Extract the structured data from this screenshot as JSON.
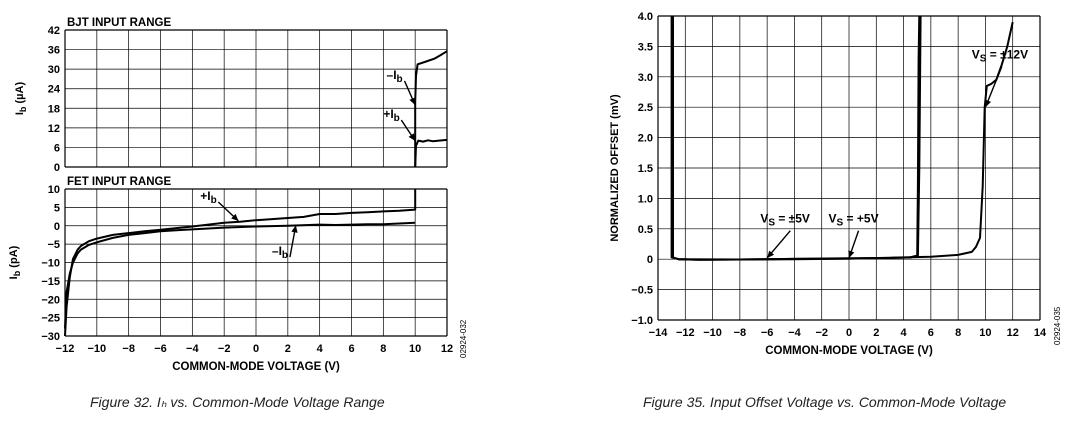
{
  "captions": {
    "fig32": "Figure 32. Iₕ vs. Common-Mode Voltage Range",
    "fig35": "Figure 35. Input Offset Voltage vs. Common-Mode Voltage"
  },
  "colors": {
    "line": "#000000",
    "grid": "#000000",
    "caption": "#222222"
  },
  "chart_data": [
    {
      "type": "line",
      "title": "BJT INPUT RANGE",
      "ylabel": "Ib (µA)",
      "xlim": [
        -12,
        12
      ],
      "ylim": [
        0,
        42
      ],
      "x_ticks": [
        -12,
        -10,
        -8,
        -6,
        -4,
        -2,
        0,
        2,
        4,
        6,
        8,
        10,
        12
      ],
      "y_ticks": [
        0,
        6,
        12,
        18,
        24,
        30,
        36,
        42
      ],
      "grid": true,
      "series": [
        {
          "name": "–Ib",
          "points": [
            [
              10,
              0
            ],
            [
              10,
              20
            ],
            [
              10.05,
              28
            ],
            [
              10.15,
              31.5
            ],
            [
              10.6,
              32.2
            ],
            [
              11.2,
              33.2
            ],
            [
              11.6,
              34.3
            ],
            [
              12,
              35.5
            ]
          ]
        },
        {
          "name": "+Ib",
          "points": [
            [
              10,
              0
            ],
            [
              10.05,
              6.5
            ],
            [
              10.2,
              8.1
            ],
            [
              10.5,
              7.8
            ],
            [
              10.8,
              8.2
            ],
            [
              11.1,
              7.9
            ],
            [
              11.5,
              8.1
            ],
            [
              12,
              8.3
            ]
          ]
        }
      ],
      "annotations": [
        {
          "text": "–Ib",
          "at": [
            8.2,
            27
          ],
          "arrow_to": [
            10,
            19
          ]
        },
        {
          "text": "+Ib",
          "at": [
            8.0,
            15
          ],
          "arrow_to": [
            10,
            8
          ]
        }
      ]
    },
    {
      "type": "line",
      "title": "FET INPUT RANGE",
      "xlabel": "COMMON-MODE VOLTAGE (V)",
      "ylabel": "Ib (pA)",
      "xlim": [
        -12,
        12
      ],
      "ylim": [
        -30,
        10
      ],
      "x_ticks": [
        -12,
        -10,
        -8,
        -6,
        -4,
        -2,
        0,
        2,
        4,
        6,
        8,
        10,
        12
      ],
      "y_ticks": [
        -30,
        -25,
        -20,
        -15,
        -10,
        -5,
        0,
        5,
        10
      ],
      "grid": true,
      "series": [
        {
          "name": "+Ib",
          "points": [
            [
              -12,
              -30
            ],
            [
              -11.9,
              -22
            ],
            [
              -11.7,
              -14
            ],
            [
              -11.5,
              -9
            ],
            [
              -11.2,
              -6.5
            ],
            [
              -11,
              -5.5
            ],
            [
              -10.5,
              -4.2
            ],
            [
              -10,
              -3.5
            ],
            [
              -9,
              -2.5
            ],
            [
              -8,
              -2
            ],
            [
              -7,
              -1.5
            ],
            [
              -6,
              -1.1
            ],
            [
              -4,
              -0.2
            ],
            [
              -2,
              0.8
            ],
            [
              -1,
              1.1
            ],
            [
              0,
              1.5
            ],
            [
              1,
              1.8
            ],
            [
              2,
              2.1
            ],
            [
              3,
              2.4
            ],
            [
              4,
              3.2
            ],
            [
              5,
              3.2
            ],
            [
              6,
              3.5
            ],
            [
              7,
              3.7
            ],
            [
              8,
              3.9
            ],
            [
              9,
              4.1
            ],
            [
              10,
              4.4
            ],
            [
              10,
              10
            ]
          ]
        },
        {
          "name": "–Ib",
          "points": [
            [
              -12,
              -28
            ],
            [
              -11.9,
              -18
            ],
            [
              -11.7,
              -13
            ],
            [
              -11.5,
              -10
            ],
            [
              -11.2,
              -7.5
            ],
            [
              -11,
              -6.5
            ],
            [
              -10.5,
              -5.2
            ],
            [
              -10,
              -4.5
            ],
            [
              -9,
              -3.3
            ],
            [
              -8,
              -2.5
            ],
            [
              -7,
              -2
            ],
            [
              -6,
              -1.5
            ],
            [
              -5,
              -1.2
            ],
            [
              -4,
              -1
            ],
            [
              -2,
              -0.5
            ],
            [
              0,
              -0.2
            ],
            [
              2,
              0
            ],
            [
              4,
              0.3
            ],
            [
              5,
              0.2
            ],
            [
              6,
              0.3
            ],
            [
              7,
              0.4
            ],
            [
              8,
              0.4
            ],
            [
              9,
              0.6
            ],
            [
              10,
              0.8
            ]
          ]
        }
      ],
      "annotations": [
        {
          "text": "+Ib",
          "at": [
            -3.5,
            7
          ],
          "arrow_to": [
            -1.1,
            1.3
          ]
        },
        {
          "text": "–Ib",
          "at": [
            1.0,
            -8
          ],
          "arrow_to": [
            2.5,
            0.1
          ]
        }
      ]
    },
    {
      "type": "line",
      "xlabel": "COMMON-MODE VOLTAGE (V)",
      "ylabel": "NORMALIZED OFFSET (mV)",
      "xlim": [
        -14,
        14
      ],
      "ylim": [
        -1.0,
        4.0
      ],
      "x_ticks": [
        -14,
        -12,
        -10,
        -8,
        -6,
        -4,
        -2,
        0,
        2,
        4,
        6,
        8,
        10,
        12,
        14
      ],
      "y_ticks": [
        -1.0,
        -0.5,
        0,
        0.5,
        1.0,
        1.5,
        2.0,
        2.5,
        3.0,
        3.5,
        4.0
      ],
      "grid": true,
      "series": [
        {
          "name": "VS = ±5V",
          "points": [
            [
              -12.9,
              4
            ],
            [
              -12.9,
              0.03
            ],
            [
              -12.5,
              0
            ],
            [
              -11,
              -0.01
            ],
            [
              -8,
              -0.005
            ],
            [
              -4,
              0.005
            ],
            [
              0,
              0.015
            ],
            [
              3,
              0.02
            ],
            [
              4.5,
              0.03
            ],
            [
              5,
              0.06
            ],
            [
              5.05,
              1.2
            ],
            [
              5.1,
              3.3
            ],
            [
              5.15,
              4
            ]
          ]
        },
        {
          "name": "VS = +5V",
          "points": [
            [
              -13,
              4
            ],
            [
              -13,
              0.03
            ],
            [
              -12.5,
              0
            ],
            [
              -11,
              -0.01
            ],
            [
              -8,
              -0.005
            ],
            [
              -4,
              0
            ],
            [
              0,
              0.01
            ],
            [
              3,
              0.02
            ],
            [
              4.5,
              0.03
            ],
            [
              5.05,
              0.06
            ],
            [
              5.15,
              1.5
            ],
            [
              5.25,
              4
            ]
          ]
        },
        {
          "name": "VS = ±12V",
          "points": [
            [
              -12.5,
              0
            ],
            [
              -8,
              -0.005
            ],
            [
              -4,
              0.005
            ],
            [
              0,
              0.01
            ],
            [
              4,
              0.03
            ],
            [
              6,
              0.04
            ],
            [
              8,
              0.07
            ],
            [
              9,
              0.12
            ],
            [
              9.3,
              0.2
            ],
            [
              9.6,
              0.35
            ],
            [
              9.8,
              1.2
            ],
            [
              9.95,
              2.5
            ],
            [
              10.1,
              2.85
            ],
            [
              10.4,
              2.88
            ],
            [
              10.8,
              2.95
            ],
            [
              11.2,
              3.2
            ],
            [
              11.6,
              3.5
            ],
            [
              12,
              3.9
            ]
          ]
        }
      ],
      "annotations": [
        {
          "text": "VS = ±5V",
          "at": [
            -6.5,
            0.6
          ],
          "arrow_to": [
            -6.0,
            0.02
          ]
        },
        {
          "text": "VS = +5V",
          "at": [
            -1.5,
            0.6
          ],
          "arrow_to": [
            0.0,
            0.02
          ]
        },
        {
          "text": "VS = ±12V",
          "at": [
            9.0,
            3.3
          ],
          "arrow_to": [
            10.0,
            2.5
          ]
        }
      ]
    }
  ],
  "side_codes": [
    "02924-032",
    "02924-035"
  ]
}
